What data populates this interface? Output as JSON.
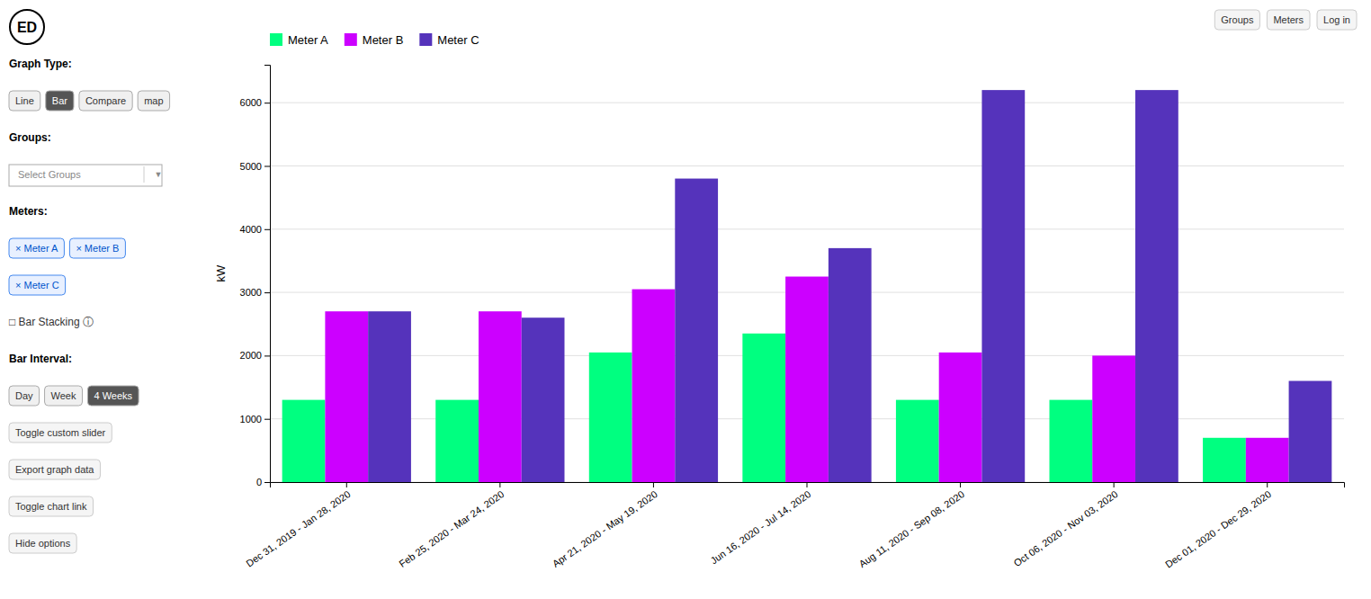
{
  "chart_data": {
    "type": "bar",
    "y_label": "kW",
    "categories": [
      "Dec 31, 2019 - Jan 28, 2020",
      "Feb 25, 2020 - Mar 24, 2020",
      "Apr 21, 2020 - May 19, 2020",
      "Jun 16, 2020 - Jul 14, 2020",
      "Aug 11, 2020 - Sep 08, 2020",
      "Oct 06, 2020 - Nov 03, 2020",
      "Dec 01, 2020 - Dec 29, 2020"
    ],
    "series": [
      {
        "name": "Meter A",
        "color": "#00ff80",
        "values": [
          1300,
          1300,
          2050,
          2350,
          1300,
          1300,
          700
        ]
      },
      {
        "name": "Meter B",
        "color": "#cc00ff",
        "values": [
          2700,
          2700,
          3050,
          3250,
          2050,
          2000,
          700
        ]
      },
      {
        "name": "Meter C",
        "color": "#5533bb",
        "values": [
          2700,
          2600,
          4800,
          3700,
          6200,
          6200,
          1600
        ]
      }
    ],
    "ylim": [
      0,
      6600
    ],
    "yticks": [
      0,
      1000,
      2000,
      3000,
      4000,
      5000,
      6000
    ],
    "grid": true,
    "legend": "upper left",
    "annotations": [
      "ED",
      "Graph Type:",
      "Line",
      "Bar",
      "Compare",
      "map",
      "Groups:",
      "Select Groups",
      "▼",
      "Meters:",
      "× Meter A",
      "× Meter B",
      "× Meter C",
      "□ Bar Stacking ⓘ",
      "Bar Interval:",
      "Day",
      "Week",
      "4 Weeks",
      "Toggle custom slider",
      "Export graph data",
      "Toggle chart link",
      "Hide options",
      "Groups",
      "Meters",
      "Log in"
    ]
  }
}
